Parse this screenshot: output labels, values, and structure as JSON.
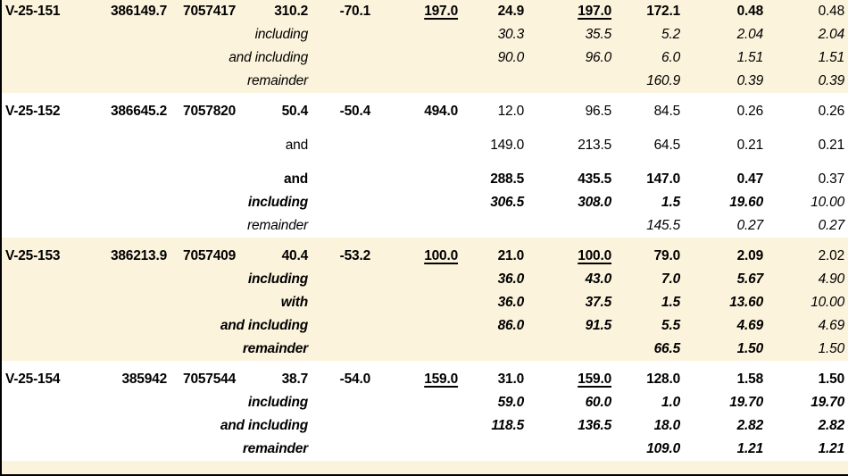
{
  "colors": {
    "band_cream": "#FCF3DC",
    "band_white": "#FFFFFF",
    "text": "#000000",
    "border": "#000000"
  },
  "table": {
    "blocks": [
      {
        "shade": "cream",
        "rows": [
          {
            "cells": [
              {
                "t": "V-25-151",
                "b": 1
              },
              {
                "t": "386149.7",
                "b": 1
              },
              {
                "t": "7057417",
                "b": 1
              },
              {
                "t": "310.2",
                "b": 1
              },
              {
                "t": "-70.1",
                "b": 1
              },
              {
                "t": "197.0",
                "b": 1,
                "u": 1
              },
              {
                "t": "24.9",
                "b": 1
              },
              {
                "t": "197.0",
                "b": 1,
                "u": 1
              },
              {
                "t": "172.1",
                "b": 1
              },
              {
                "t": "0.48",
                "b": 1
              },
              {
                "t": "0.48"
              }
            ]
          },
          {
            "cells": [
              null,
              null,
              null,
              {
                "t": "including",
                "i": 1
              },
              null,
              null,
              {
                "t": "30.3",
                "i": 1
              },
              {
                "t": "35.5",
                "i": 1
              },
              {
                "t": "5.2",
                "i": 1
              },
              {
                "t": "2.04",
                "i": 1
              },
              {
                "t": "2.04",
                "i": 1
              }
            ]
          },
          {
            "cells": [
              null,
              null,
              null,
              {
                "t": "and including",
                "i": 1
              },
              null,
              null,
              {
                "t": "90.0",
                "i": 1
              },
              {
                "t": "96.0",
                "i": 1
              },
              {
                "t": "6.0",
                "i": 1
              },
              {
                "t": "1.51",
                "i": 1
              },
              {
                "t": "1.51",
                "i": 1
              }
            ]
          },
          {
            "cells": [
              null,
              null,
              null,
              {
                "t": "remainder",
                "i": 1
              },
              null,
              null,
              null,
              null,
              {
                "t": "160.9",
                "i": 1
              },
              {
                "t": "0.39",
                "i": 1
              },
              {
                "t": "0.39",
                "i": 1
              }
            ]
          }
        ]
      },
      {
        "shade": "white",
        "rows": [
          {
            "cells": [
              {
                "t": "V-25-152",
                "b": 1
              },
              {
                "t": "386645.2",
                "b": 1
              },
              {
                "t": "7057820",
                "b": 1
              },
              {
                "t": "50.4",
                "b": 1
              },
              {
                "t": "-50.4",
                "b": 1
              },
              {
                "t": "494.0",
                "b": 1
              },
              {
                "t": "12.0"
              },
              {
                "t": "96.5"
              },
              {
                "t": "84.5"
              },
              {
                "t": "0.26"
              },
              {
                "t": "0.26"
              }
            ]
          },
          {
            "gap_before": true,
            "cells": [
              null,
              null,
              null,
              {
                "t": "and"
              },
              null,
              null,
              {
                "t": "149.0"
              },
              {
                "t": "213.5"
              },
              {
                "t": "64.5"
              },
              {
                "t": "0.21"
              },
              {
                "t": "0.21"
              }
            ]
          },
          {
            "gap_before": true,
            "cells": [
              null,
              null,
              null,
              {
                "t": "and",
                "b": 1
              },
              null,
              null,
              {
                "t": "288.5",
                "b": 1
              },
              {
                "t": "435.5",
                "b": 1
              },
              {
                "t": "147.0",
                "b": 1
              },
              {
                "t": "0.47",
                "b": 1
              },
              {
                "t": "0.37"
              }
            ]
          },
          {
            "cells": [
              null,
              null,
              null,
              {
                "t": "including",
                "b": 1,
                "i": 1
              },
              null,
              null,
              {
                "t": "306.5",
                "b": 1,
                "i": 1
              },
              {
                "t": "308.0",
                "b": 1,
                "i": 1
              },
              {
                "t": "1.5",
                "b": 1,
                "i": 1
              },
              {
                "t": "19.60",
                "b": 1,
                "i": 1
              },
              {
                "t": "10.00",
                "i": 1
              }
            ]
          },
          {
            "cells": [
              null,
              null,
              null,
              {
                "t": "remainder",
                "i": 1
              },
              null,
              null,
              null,
              null,
              {
                "t": "145.5",
                "i": 1
              },
              {
                "t": "0.27",
                "i": 1
              },
              {
                "t": "0.27",
                "i": 1
              }
            ]
          }
        ]
      },
      {
        "shade": "cream",
        "rows": [
          {
            "cells": [
              {
                "t": "V-25-153",
                "b": 1
              },
              {
                "t": "386213.9",
                "b": 1
              },
              {
                "t": "7057409",
                "b": 1
              },
              {
                "t": "40.4",
                "b": 1
              },
              {
                "t": "-53.2",
                "b": 1
              },
              {
                "t": "100.0",
                "b": 1,
                "u": 1
              },
              {
                "t": "21.0",
                "b": 1
              },
              {
                "t": "100.0",
                "b": 1,
                "u": 1
              },
              {
                "t": "79.0",
                "b": 1
              },
              {
                "t": "2.09",
                "b": 1
              },
              {
                "t": "2.02"
              }
            ]
          },
          {
            "cells": [
              null,
              null,
              null,
              {
                "t": "including",
                "b": 1,
                "i": 1
              },
              null,
              null,
              {
                "t": "36.0",
                "b": 1,
                "i": 1
              },
              {
                "t": "43.0",
                "b": 1,
                "i": 1
              },
              {
                "t": "7.0",
                "b": 1,
                "i": 1
              },
              {
                "t": "5.67",
                "b": 1,
                "i": 1
              },
              {
                "t": "4.90",
                "i": 1
              }
            ]
          },
          {
            "cells": [
              null,
              null,
              null,
              {
                "t": "with",
                "b": 1,
                "i": 1
              },
              null,
              null,
              {
                "t": "36.0",
                "b": 1,
                "i": 1
              },
              {
                "t": "37.5",
                "b": 1,
                "i": 1
              },
              {
                "t": "1.5",
                "b": 1,
                "i": 1
              },
              {
                "t": "13.60",
                "b": 1,
                "i": 1
              },
              {
                "t": "10.00",
                "i": 1
              }
            ]
          },
          {
            "cells": [
              null,
              null,
              null,
              {
                "t": "and including",
                "b": 1,
                "i": 1
              },
              null,
              null,
              {
                "t": "86.0",
                "b": 1,
                "i": 1
              },
              {
                "t": "91.5",
                "b": 1,
                "i": 1
              },
              {
                "t": "5.5",
                "b": 1,
                "i": 1
              },
              {
                "t": "4.69",
                "b": 1,
                "i": 1
              },
              {
                "t": "4.69",
                "i": 1
              }
            ]
          },
          {
            "cells": [
              null,
              null,
              null,
              {
                "t": "remainder",
                "b": 1,
                "i": 1
              },
              null,
              null,
              null,
              null,
              {
                "t": "66.5",
                "b": 1,
                "i": 1
              },
              {
                "t": "1.50",
                "b": 1,
                "i": 1
              },
              {
                "t": "1.50",
                "i": 1
              }
            ]
          }
        ]
      },
      {
        "shade": "white",
        "rows": [
          {
            "cells": [
              {
                "t": "V-25-154",
                "b": 1
              },
              {
                "t": "385942",
                "b": 1
              },
              {
                "t": "7057544",
                "b": 1
              },
              {
                "t": "38.7",
                "b": 1
              },
              {
                "t": "-54.0",
                "b": 1
              },
              {
                "t": "159.0",
                "b": 1,
                "u": 1
              },
              {
                "t": "31.0",
                "b": 1
              },
              {
                "t": "159.0",
                "b": 1,
                "u": 1
              },
              {
                "t": "128.0",
                "b": 1
              },
              {
                "t": "1.58",
                "b": 1
              },
              {
                "t": "1.50",
                "b": 1
              }
            ]
          },
          {
            "cells": [
              null,
              null,
              null,
              {
                "t": "including",
                "b": 1,
                "i": 1
              },
              null,
              null,
              {
                "t": "59.0",
                "b": 1,
                "i": 1
              },
              {
                "t": "60.0",
                "b": 1,
                "i": 1
              },
              {
                "t": "1.0",
                "b": 1,
                "i": 1
              },
              {
                "t": "19.70",
                "b": 1,
                "i": 1
              },
              {
                "t": "19.70",
                "b": 1,
                "i": 1
              }
            ]
          },
          {
            "cells": [
              null,
              null,
              null,
              {
                "t": "and including",
                "b": 1,
                "i": 1
              },
              null,
              null,
              {
                "t": "118.5",
                "b": 1,
                "i": 1
              },
              {
                "t": "136.5",
                "b": 1,
                "i": 1
              },
              {
                "t": "18.0",
                "b": 1,
                "i": 1
              },
              {
                "t": "2.82",
                "b": 1,
                "i": 1
              },
              {
                "t": "2.82",
                "b": 1,
                "i": 1
              }
            ]
          },
          {
            "cells": [
              null,
              null,
              null,
              {
                "t": "remainder",
                "b": 1,
                "i": 1
              },
              null,
              null,
              null,
              null,
              {
                "t": "109.0",
                "b": 1,
                "i": 1
              },
              {
                "t": "1.21",
                "b": 1,
                "i": 1
              },
              {
                "t": "1.21",
                "b": 1,
                "i": 1
              }
            ]
          }
        ]
      },
      {
        "shade": "cream",
        "filler": true,
        "rows": []
      }
    ]
  }
}
